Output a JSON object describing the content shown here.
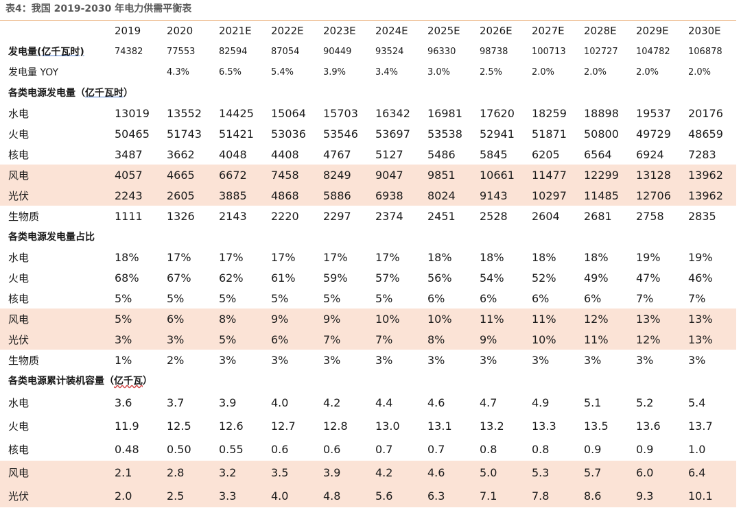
{
  "title": "表4：我国 2019-2030 年电力供需平衡表",
  "header": [
    "2019",
    "2020",
    "2021E",
    "2022E",
    "2023E",
    "2024E",
    "2025E",
    "2026E",
    "2027E",
    "2028E",
    "2029E",
    "2030E"
  ],
  "generation": {
    "label_main": "发电量",
    "label_unit": "(亿千瓦时)",
    "values": [
      "74382",
      "77553",
      "82594",
      "87054",
      "90449",
      "93524",
      "96330",
      "98738",
      "100713",
      "102727",
      "104782",
      "106878"
    ]
  },
  "yoy": {
    "label": "发电量 YOY",
    "values": [
      "",
      "4.3%",
      "6.5%",
      "5.4%",
      "3.9%",
      "3.4%",
      "3.0%",
      "2.5%",
      "2.0%",
      "2.0%",
      "2.0%",
      "2.0%"
    ]
  },
  "section_gen": {
    "main": "各类电源发电量（",
    "unit": "亿千瓦时",
    "close": "）"
  },
  "gen_rows": [
    {
      "label": "水电",
      "values": [
        "13019",
        "13552",
        "14425",
        "15064",
        "15703",
        "16342",
        "16981",
        "17620",
        "18259",
        "18898",
        "19537",
        "20176"
      ]
    },
    {
      "label": "火电",
      "values": [
        "50465",
        "51743",
        "51421",
        "53036",
        "53546",
        "53697",
        "53538",
        "52941",
        "51871",
        "50800",
        "49729",
        "48659"
      ]
    },
    {
      "label": "核电",
      "values": [
        "3487",
        "3662",
        "4048",
        "4408",
        "4767",
        "5127",
        "5486",
        "5845",
        "6205",
        "6564",
        "6924",
        "7283"
      ]
    },
    {
      "label": "风电",
      "values": [
        "4057",
        "4665",
        "6672",
        "7458",
        "8249",
        "9047",
        "9851",
        "10661",
        "11477",
        "12299",
        "13128",
        "13962"
      ]
    },
    {
      "label": "光伏",
      "values": [
        "2243",
        "2605",
        "3885",
        "4868",
        "5886",
        "6938",
        "8024",
        "9143",
        "10297",
        "11485",
        "12706",
        "13962"
      ]
    },
    {
      "label": "生物质",
      "values": [
        "1111",
        "1326",
        "2143",
        "2220",
        "2297",
        "2374",
        "2451",
        "2528",
        "2604",
        "2681",
        "2758",
        "2835"
      ]
    }
  ],
  "section_share": {
    "main": "各类电源发电量占比"
  },
  "share_rows": [
    {
      "label": "水电",
      "values": [
        "18%",
        "17%",
        "17%",
        "17%",
        "17%",
        "17%",
        "18%",
        "18%",
        "18%",
        "18%",
        "19%",
        "19%"
      ]
    },
    {
      "label": "火电",
      "values": [
        "68%",
        "67%",
        "62%",
        "61%",
        "59%",
        "57%",
        "56%",
        "54%",
        "52%",
        "49%",
        "47%",
        "46%"
      ]
    },
    {
      "label": "核电",
      "values": [
        "5%",
        "5%",
        "5%",
        "5%",
        "5%",
        "5%",
        "6%",
        "6%",
        "6%",
        "6%",
        "7%",
        "7%"
      ]
    },
    {
      "label": "风电",
      "values": [
        "5%",
        "6%",
        "8%",
        "9%",
        "9%",
        "10%",
        "10%",
        "11%",
        "11%",
        "12%",
        "13%",
        "13%"
      ]
    },
    {
      "label": "光伏",
      "values": [
        "3%",
        "3%",
        "5%",
        "6%",
        "7%",
        "7%",
        "8%",
        "9%",
        "10%",
        "11%",
        "12%",
        "13%"
      ]
    },
    {
      "label": "生物质",
      "values": [
        "1%",
        "2%",
        "3%",
        "3%",
        "3%",
        "3%",
        "3%",
        "3%",
        "3%",
        "3%",
        "3%",
        "3%"
      ]
    }
  ],
  "section_cap": {
    "main": "各类电源累计装机容量（",
    "unit": "亿千瓦",
    "close": "）"
  },
  "cap_rows": [
    {
      "label": "水电",
      "values": [
        "3.6",
        "3.7",
        "3.9",
        "4.0",
        "4.2",
        "4.4",
        "4.6",
        "4.7",
        "4.9",
        "5.1",
        "5.2",
        "5.4"
      ]
    },
    {
      "label": "火电",
      "values": [
        "11.9",
        "12.5",
        "12.6",
        "12.7",
        "12.8",
        "13.0",
        "13.1",
        "13.2",
        "13.3",
        "13.5",
        "13.6",
        "13.7"
      ]
    },
    {
      "label": "核电",
      "values": [
        "0.48",
        "0.50",
        "0.55",
        "0.6",
        "0.6",
        "0.7",
        "0.7",
        "0.8",
        "0.8",
        "0.9",
        "0.9",
        "1.0"
      ]
    },
    {
      "label": "风电",
      "values": [
        "2.1",
        "2.8",
        "3.2",
        "3.5",
        "3.9",
        "4.2",
        "4.6",
        "5.0",
        "5.3",
        "5.7",
        "6.0",
        "6.4"
      ]
    },
    {
      "label": "光伏",
      "values": [
        "2.0",
        "2.5",
        "3.3",
        "4.0",
        "4.8",
        "5.6",
        "6.3",
        "7.1",
        "7.8",
        "8.6",
        "9.3",
        "10.1"
      ]
    }
  ],
  "highlight_color": "#fbe3d6",
  "rule_color": "#e8a76c"
}
